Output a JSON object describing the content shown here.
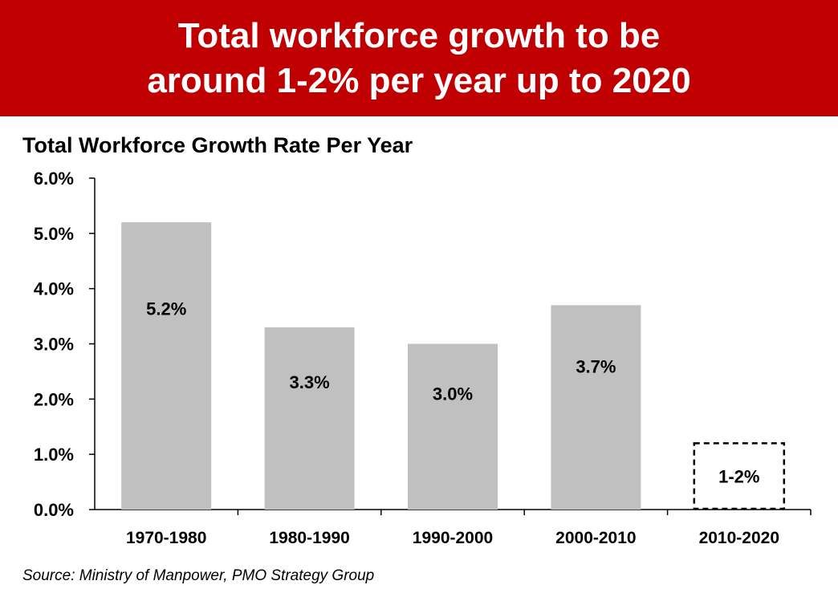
{
  "header": {
    "title_line1": "Total workforce growth to be",
    "title_line2": "around 1-2% per year up to 2020"
  },
  "colors": {
    "banner": "#c00000",
    "bar": "#c0c0c0",
    "projection_outline": "#000000"
  },
  "chart_data": {
    "type": "bar",
    "title": "Total Workforce Growth Rate Per Year",
    "xlabel": "",
    "ylabel": "",
    "ylim": [
      0,
      6
    ],
    "yticks": [
      "0.0%",
      "1.0%",
      "2.0%",
      "3.0%",
      "4.0%",
      "5.0%",
      "6.0%"
    ],
    "categories": [
      "1970-1980",
      "1980-1990",
      "1990-2000",
      "2000-2010",
      "2010-2020"
    ],
    "values": [
      5.2,
      3.3,
      3.0,
      3.7,
      1.2
    ],
    "data_labels": [
      "5.2%",
      "3.3%",
      "3.0%",
      "3.7%",
      "1-2%"
    ],
    "styles": [
      "solid",
      "solid",
      "solid",
      "solid",
      "dashed-outline"
    ],
    "grid": false,
    "legend": "none"
  },
  "source": "Source: Ministry of Manpower, PMO Strategy Group"
}
